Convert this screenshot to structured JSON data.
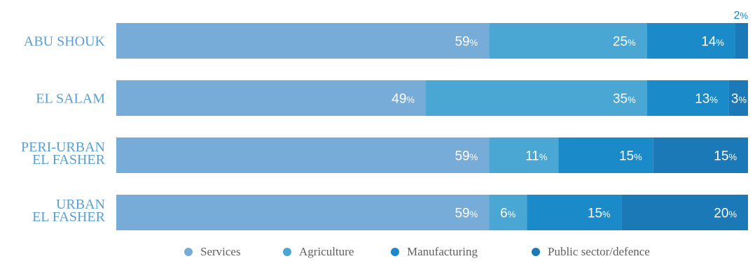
{
  "chart_data": {
    "type": "bar",
    "orientation": "horizontal",
    "stacked": true,
    "unit_suffix": "%",
    "categories": [
      [
        "ABU SHOUK"
      ],
      [
        "EL SALAM"
      ],
      [
        "PERI-URBAN",
        "EL FASHER"
      ],
      [
        "URBAN",
        "EL FASHER"
      ]
    ],
    "series": [
      {
        "name": "Services",
        "values": [
          59,
          49,
          59,
          59
        ],
        "color": "#78acd8"
      },
      {
        "name": "Agriculture",
        "values": [
          25,
          35,
          11,
          6
        ],
        "color": "#4aa6d3"
      },
      {
        "name": "Manufacturing",
        "values": [
          14,
          13,
          15,
          15
        ],
        "color": "#1b8ac9"
      },
      {
        "name": "Public sector/defence",
        "values": [
          2,
          3,
          15,
          20
        ],
        "color": "#1a79b6"
      }
    ],
    "xlim": [
      0,
      100
    ],
    "grid": false,
    "legend_position": "bottom"
  },
  "colors": {
    "category_label": "#5a9fd0",
    "legend_text": "#5f5f5f",
    "outside_label": "#1a84c4",
    "value_label": "#ffffff"
  }
}
